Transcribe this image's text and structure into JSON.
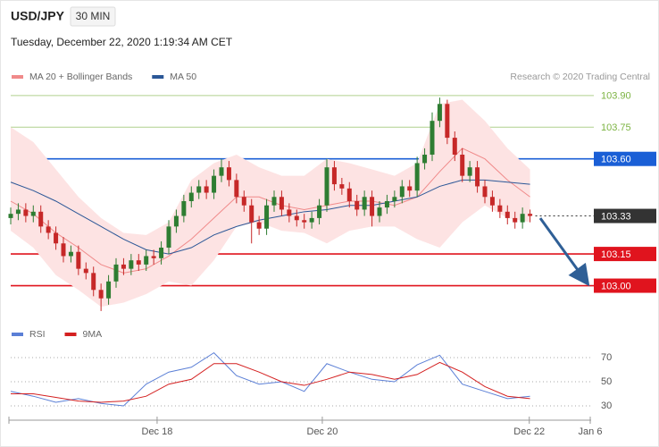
{
  "header": {
    "symbol": "USD/JPY",
    "timeframe": "30 MIN",
    "timestamp": "Tuesday, December 22, 2020 1:19:34 AM CET"
  },
  "chart_data": [
    {
      "type": "candlestick",
      "credit": "Research © 2020 Trading Central",
      "up_color": "#2e7d32",
      "down_color": "#c62828",
      "xlim": [
        0,
        77
      ],
      "ylim": [
        102.85,
        103.95
      ],
      "candles": {
        "open": [
          103.32,
          103.34,
          103.36,
          103.33,
          103.35,
          103.28,
          103.25,
          103.2,
          103.14,
          103.16,
          103.08,
          103.06,
          102.98,
          102.94,
          103.02,
          103.1,
          103.08,
          103.12,
          103.1,
          103.14,
          103.13,
          103.18,
          103.28,
          103.33,
          103.4,
          103.44,
          103.47,
          103.44,
          103.52,
          103.56,
          103.5,
          103.42,
          103.38,
          103.3,
          103.27,
          103.38,
          103.42,
          103.36,
          103.33,
          103.31,
          103.3,
          103.32,
          103.38,
          103.56,
          103.48,
          103.46,
          103.4,
          103.36,
          103.42,
          103.33,
          103.37,
          103.4,
          103.42,
          103.47,
          103.45,
          103.58,
          103.62,
          103.78,
          103.86,
          103.7,
          103.62,
          103.52,
          103.56,
          103.47,
          103.42,
          103.38,
          103.35,
          103.32,
          103.3,
          103.34
        ],
        "high": [
          103.37,
          103.39,
          103.39,
          103.38,
          103.38,
          103.31,
          103.28,
          103.23,
          103.19,
          103.19,
          103.11,
          103.09,
          103.01,
          103.05,
          103.13,
          103.13,
          103.15,
          103.15,
          103.17,
          103.17,
          103.21,
          103.31,
          103.36,
          103.43,
          103.47,
          103.5,
          103.5,
          103.55,
          103.6,
          103.59,
          103.53,
          103.45,
          103.41,
          103.33,
          103.41,
          103.45,
          103.45,
          103.39,
          103.36,
          103.34,
          103.35,
          103.41,
          103.6,
          103.59,
          103.51,
          103.49,
          103.43,
          103.45,
          103.45,
          103.4,
          103.43,
          103.45,
          103.5,
          103.5,
          103.61,
          103.65,
          103.82,
          103.89,
          103.88,
          103.73,
          103.65,
          103.59,
          103.59,
          103.5,
          103.45,
          103.41,
          103.38,
          103.35,
          103.37,
          103.36
        ],
        "low": [
          103.29,
          103.31,
          103.3,
          103.3,
          103.25,
          103.22,
          103.17,
          103.11,
          103.11,
          103.05,
          103.03,
          102.95,
          102.88,
          102.91,
          102.99,
          103.05,
          103.05,
          103.07,
          103.07,
          103.1,
          103.1,
          103.15,
          103.25,
          103.3,
          103.37,
          103.41,
          103.41,
          103.41,
          103.49,
          103.47,
          103.39,
          103.35,
          103.2,
          103.24,
          103.24,
          103.35,
          103.33,
          103.3,
          103.28,
          103.27,
          103.27,
          103.29,
          103.35,
          103.45,
          103.43,
          103.37,
          103.33,
          103.33,
          103.28,
          103.3,
          103.34,
          103.37,
          103.39,
          103.42,
          103.42,
          103.55,
          103.59,
          103.75,
          103.67,
          103.59,
          103.49,
          103.49,
          103.44,
          103.39,
          103.35,
          103.32,
          103.29,
          103.27,
          103.27,
          103.3
        ],
        "close": [
          103.34,
          103.36,
          103.33,
          103.35,
          103.28,
          103.25,
          103.2,
          103.14,
          103.16,
          103.08,
          103.06,
          102.98,
          102.94,
          103.02,
          103.1,
          103.08,
          103.12,
          103.1,
          103.14,
          103.13,
          103.18,
          103.28,
          103.33,
          103.4,
          103.44,
          103.47,
          103.44,
          103.52,
          103.56,
          103.5,
          103.42,
          103.38,
          103.3,
          103.27,
          103.38,
          103.42,
          103.36,
          103.33,
          103.31,
          103.3,
          103.32,
          103.38,
          103.56,
          103.48,
          103.46,
          103.4,
          103.36,
          103.42,
          103.33,
          103.37,
          103.4,
          103.42,
          103.47,
          103.45,
          103.58,
          103.62,
          103.78,
          103.86,
          103.7,
          103.62,
          103.52,
          103.56,
          103.47,
          103.42,
          103.38,
          103.35,
          103.32,
          103.3,
          103.34,
          103.33
        ]
      },
      "series": [
        {
          "name": "MA 20 + Bollinger Bands",
          "color": "#f08a8a",
          "band_color": "#fde3e3",
          "x": [
            0,
            3,
            6,
            9,
            12,
            15,
            18,
            21,
            24,
            27,
            30,
            33,
            36,
            39,
            42,
            45,
            48,
            51,
            54,
            57,
            60,
            63,
            66,
            69
          ],
          "values": [
            103.4,
            103.34,
            103.25,
            103.18,
            103.1,
            103.06,
            103.08,
            103.14,
            103.22,
            103.32,
            103.42,
            103.42,
            103.38,
            103.36,
            103.38,
            103.4,
            103.4,
            103.38,
            103.42,
            103.54,
            103.65,
            103.6,
            103.5,
            103.42
          ],
          "upper": [
            103.75,
            103.68,
            103.55,
            103.42,
            103.32,
            103.25,
            103.24,
            103.3,
            103.5,
            103.58,
            103.62,
            103.56,
            103.52,
            103.52,
            103.6,
            103.58,
            103.55,
            103.52,
            103.58,
            103.86,
            103.88,
            103.78,
            103.65,
            103.55
          ],
          "lower": [
            103.26,
            103.18,
            103.05,
            102.98,
            102.9,
            102.92,
            102.96,
            103.02,
            103.0,
            103.12,
            103.28,
            103.3,
            103.26,
            103.25,
            103.2,
            103.26,
            103.28,
            103.28,
            103.22,
            103.18,
            103.3,
            103.38,
            103.32,
            103.3
          ]
        },
        {
          "name": "MA 50",
          "color": "#2b5797",
          "x": [
            0,
            3,
            6,
            9,
            12,
            15,
            18,
            21,
            24,
            27,
            30,
            33,
            36,
            39,
            42,
            45,
            48,
            51,
            54,
            57,
            60,
            63,
            66,
            69
          ],
          "values": [
            103.49,
            103.45,
            103.4,
            103.34,
            103.28,
            103.22,
            103.17,
            103.15,
            103.18,
            103.24,
            103.28,
            103.31,
            103.33,
            103.35,
            103.36,
            103.38,
            103.38,
            103.4,
            103.42,
            103.47,
            103.5,
            103.5,
            103.49,
            103.48
          ]
        }
      ],
      "levels": [
        {
          "value": 103.9,
          "label": "103.90",
          "color": "#7cb342",
          "line": "solid",
          "box": false
        },
        {
          "value": 103.75,
          "label": "103.75",
          "color": "#7cb342",
          "line": "solid",
          "box": false
        },
        {
          "value": 103.6,
          "label": "103.60",
          "color": "#1a5fd6",
          "line": "solid",
          "box": true
        },
        {
          "value": 103.33,
          "label": "103.33",
          "color": "#333333",
          "line": "dotted",
          "box": true
        },
        {
          "value": 103.15,
          "label": "103.15",
          "color": "#e0141e",
          "line": "solid",
          "box": true
        },
        {
          "value": 103.0,
          "label": "103.00",
          "color": "#e0141e",
          "line": "solid",
          "box": true
        }
      ]
    },
    {
      "type": "line",
      "xlim": [
        0,
        77
      ],
      "ylim": [
        20,
        80
      ],
      "yticks": [
        30,
        50,
        70
      ],
      "grid": true,
      "xticks": [
        {
          "value": 19.45,
          "label": "Dec 18"
        },
        {
          "value": 41.4,
          "label": "Dec 20"
        },
        {
          "value": 68.9,
          "label": "Dec 22"
        },
        {
          "value": 77,
          "label": "Jan 6"
        }
      ],
      "series": [
        {
          "name": "RSI",
          "color": "#5b7fd6",
          "x": [
            0,
            3,
            6,
            9,
            12,
            15,
            18,
            21,
            24,
            27,
            30,
            33,
            36,
            39,
            42,
            45,
            48,
            51,
            54,
            57,
            60,
            63,
            66,
            69
          ],
          "values": [
            42,
            38,
            33,
            36,
            32,
            30,
            48,
            58,
            62,
            74,
            55,
            48,
            50,
            42,
            65,
            58,
            52,
            50,
            64,
            72,
            48,
            42,
            36,
            38
          ]
        },
        {
          "name": "9MA",
          "color": "#d42020",
          "x": [
            0,
            3,
            6,
            9,
            12,
            15,
            18,
            21,
            24,
            27,
            30,
            33,
            36,
            39,
            42,
            45,
            48,
            51,
            54,
            57,
            60,
            63,
            66,
            69
          ],
          "values": [
            40,
            40,
            37,
            34,
            33,
            34,
            38,
            48,
            52,
            65,
            65,
            58,
            50,
            47,
            52,
            58,
            56,
            52,
            56,
            66,
            58,
            46,
            38,
            36
          ]
        }
      ]
    }
  ]
}
